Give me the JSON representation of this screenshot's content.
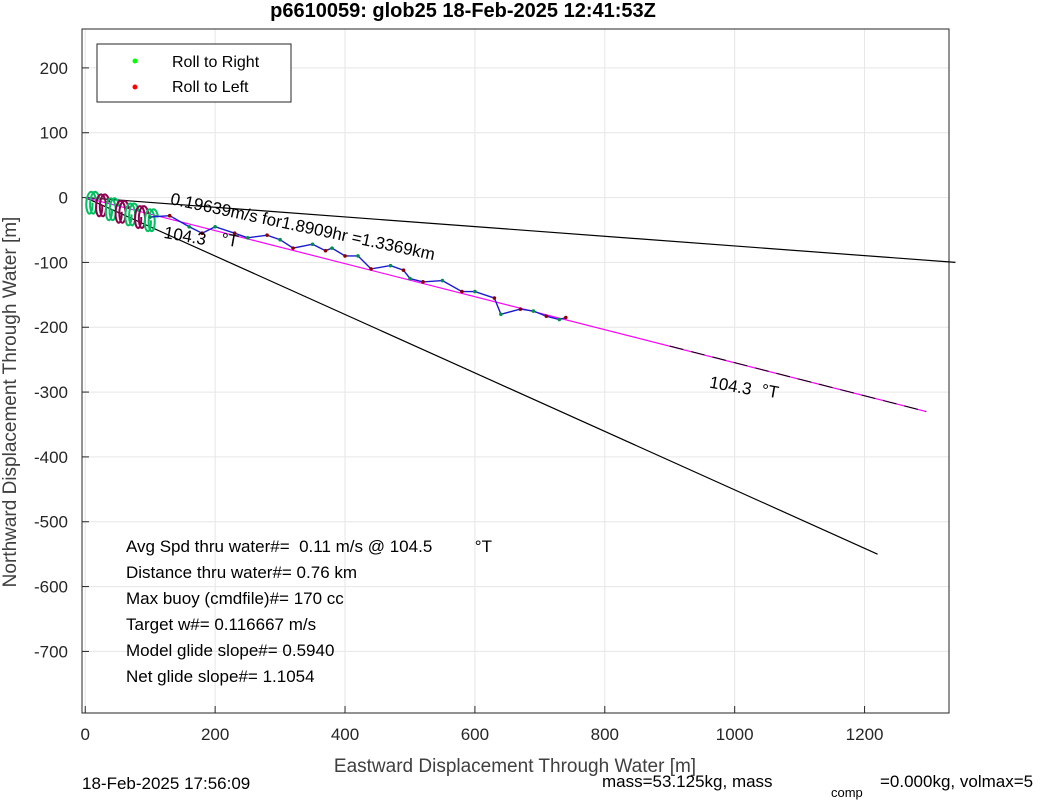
{
  "chart_data": {
    "type": "line",
    "title": "p6610059: glob25 18-Feb-2025 12:41:53Z",
    "xlabel": "Eastward Displacement Through Water [m]",
    "ylabel": "Northward Displacement Through Water [m]",
    "xlim": [
      -5,
      1330
    ],
    "ylim": [
      -795,
      260
    ],
    "xticks": [
      0,
      200,
      400,
      600,
      800,
      1000,
      1200
    ],
    "yticks": [
      200,
      100,
      0,
      -100,
      -200,
      -300,
      -400,
      -500,
      -600,
      -700
    ],
    "grid": true,
    "legend": {
      "placement": "top-left",
      "entries": [
        {
          "label": "Roll to Right",
          "color": "#00ff00"
        },
        {
          "label": "Roll to Left",
          "color": "#ff0000"
        }
      ]
    },
    "lines": [
      {
        "role": "bound-upper",
        "color": "#000000",
        "x": [
          0,
          1340
        ],
        "y": [
          0,
          -100
        ]
      },
      {
        "role": "bound-lower",
        "color": "#000000",
        "x": [
          0,
          1220
        ],
        "y": [
          0,
          -550
        ]
      },
      {
        "role": "mean-heading",
        "color": "#ff00ff",
        "x": [
          0,
          1295
        ],
        "y": [
          0,
          -330
        ]
      },
      {
        "role": "mean-heading-dashed",
        "color": "#000000",
        "x": [
          900,
          1295
        ],
        "y": [
          -229,
          -330
        ]
      }
    ],
    "track": {
      "color": "#1a1ad0",
      "x": [
        100,
        130,
        160,
        180,
        200,
        230,
        250,
        280,
        300,
        320,
        350,
        370,
        380,
        400,
        420,
        440,
        470,
        490,
        500,
        520,
        550,
        580,
        600,
        630,
        640,
        670,
        690,
        710,
        730,
        740
      ],
      "y": [
        -30,
        -28,
        -45,
        -55,
        -45,
        -55,
        -62,
        -58,
        -65,
        -78,
        -72,
        -82,
        -78,
        -90,
        -90,
        -110,
        -105,
        -112,
        -125,
        -130,
        -128,
        -145,
        -145,
        -155,
        -180,
        -172,
        -175,
        -183,
        -188,
        -185
      ]
    },
    "spirals": {
      "x": [
        5,
        20,
        35,
        50,
        65,
        80,
        95
      ],
      "y": [
        -8,
        -12,
        -18,
        -22,
        -26,
        -30,
        -35
      ]
    },
    "annotations": [
      {
        "text": "0.19639m/s for1.8909hr =1.3369km",
        "x": 130,
        "y": -10,
        "rotate": 12
      },
      {
        "text": "104.3",
        "x": 120,
        "y": -62,
        "rotate": 10
      },
      {
        "text": "°T",
        "x": 208,
        "y": -72,
        "rotate": 10
      },
      {
        "text": "104.3",
        "x": 960,
        "y": -293,
        "rotate": 10
      },
      {
        "text": "°T",
        "x": 1040,
        "y": -305,
        "rotate": 10
      }
    ],
    "stats": [
      "Avg Spd thru water#=  0.11 m/s @ 104.5         °T",
      "Distance thru water#=  0.76 km",
      "Max buoy (cmdfile)#= 170 cc",
      "Target w#= 0.116667 m/s",
      "Model glide slope#= 0.5940",
      "Net glide slope#= 1.1054"
    ]
  },
  "footer": {
    "timestamp": "18-Feb-2025 17:56:09",
    "mass_prefix": "mass=53.125kg, mass",
    "mass_subscript": "comp",
    "mass_suffix": "=0.000kg, volmax=5"
  }
}
